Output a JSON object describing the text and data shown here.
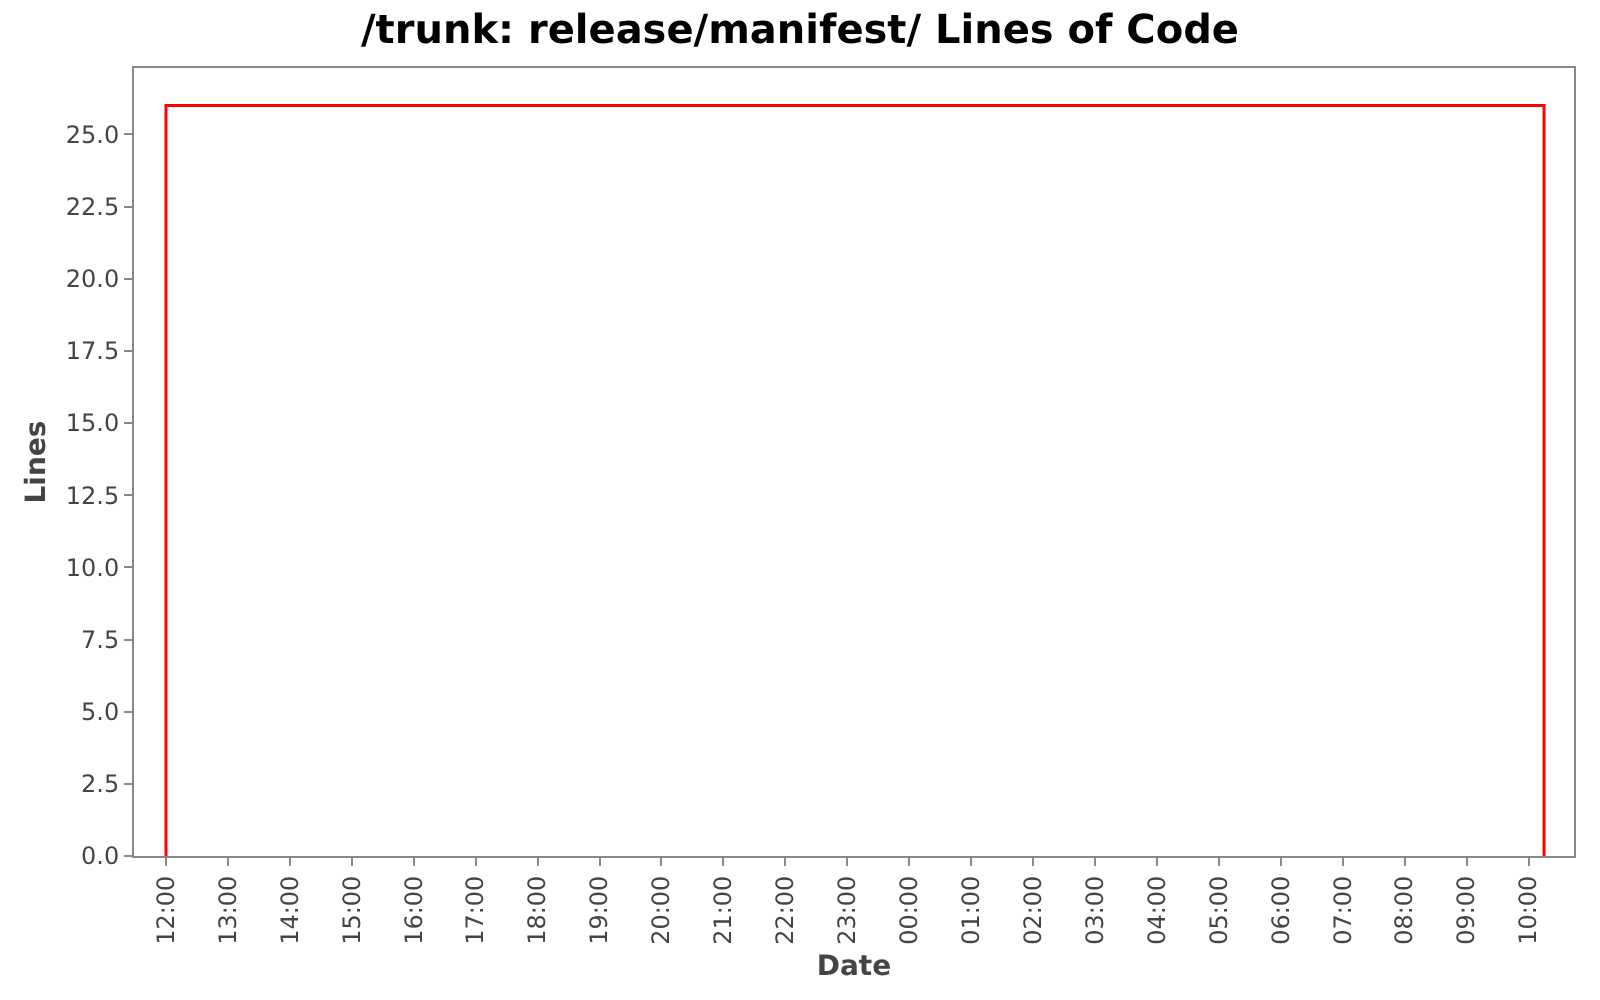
{
  "chart_data": {
    "type": "line",
    "title": "/trunk: release/manifest/ Lines of Code",
    "xlabel": "Date",
    "ylabel": "Lines",
    "x": [
      "--01-01T12:00",
      "--01-01T12:00",
      "--01-02T10:15",
      "--01-02T10:15"
    ],
    "series": [
      {
        "color": "#ff0000",
        "values": [
          0,
          26,
          26,
          0
        ]
      }
    ],
    "xlim": [
      "--01-01T11:29",
      "--01-02T10:44"
    ],
    "xticks": [
      {
        "value": "--01-01T12:00",
        "label": "12:00"
      },
      {
        "value": "--01-01T13:00",
        "label": "13:00"
      },
      {
        "value": "--01-01T14:00",
        "label": "14:00"
      },
      {
        "value": "--01-01T15:00",
        "label": "15:00"
      },
      {
        "value": "--01-01T16:00",
        "label": "16:00"
      },
      {
        "value": "--01-01T17:00",
        "label": "17:00"
      },
      {
        "value": "--01-01T18:00",
        "label": "18:00"
      },
      {
        "value": "--01-01T19:00",
        "label": "19:00"
      },
      {
        "value": "--01-01T20:00",
        "label": "20:00"
      },
      {
        "value": "--01-01T21:00",
        "label": "21:00"
      },
      {
        "value": "--01-01T22:00",
        "label": "22:00"
      },
      {
        "value": "--01-01T23:00",
        "label": "23:00"
      },
      {
        "value": "--01-02T00:00",
        "label": "00:00"
      },
      {
        "value": "--01-02T01:00",
        "label": "01:00"
      },
      {
        "value": "--01-02T02:00",
        "label": "02:00"
      },
      {
        "value": "--01-02T03:00",
        "label": "03:00"
      },
      {
        "value": "--01-02T04:00",
        "label": "04:00"
      },
      {
        "value": "--01-02T05:00",
        "label": "05:00"
      },
      {
        "value": "--01-02T06:00",
        "label": "06:00"
      },
      {
        "value": "--01-02T07:00",
        "label": "07:00"
      },
      {
        "value": "--01-02T08:00",
        "label": "08:00"
      },
      {
        "value": "--01-02T09:00",
        "label": "09:00"
      },
      {
        "value": "--01-02T10:00",
        "label": "10:00"
      }
    ],
    "ylim": [
      0,
      27.3
    ],
    "yticks": [
      {
        "value": 0,
        "label": "0.0"
      },
      2.5,
      {
        "value": 5,
        "label": "5.0"
      },
      7.5,
      {
        "value": 10,
        "label": "10.0"
      },
      12.5,
      {
        "value": 15,
        "label": "15.0"
      },
      17.5,
      {
        "value": 20,
        "label": "20.0"
      },
      22.5,
      {
        "value": 25,
        "label": "25.0"
      }
    ],
    "grid": false,
    "marker": "none",
    "line_style": "solid"
  }
}
